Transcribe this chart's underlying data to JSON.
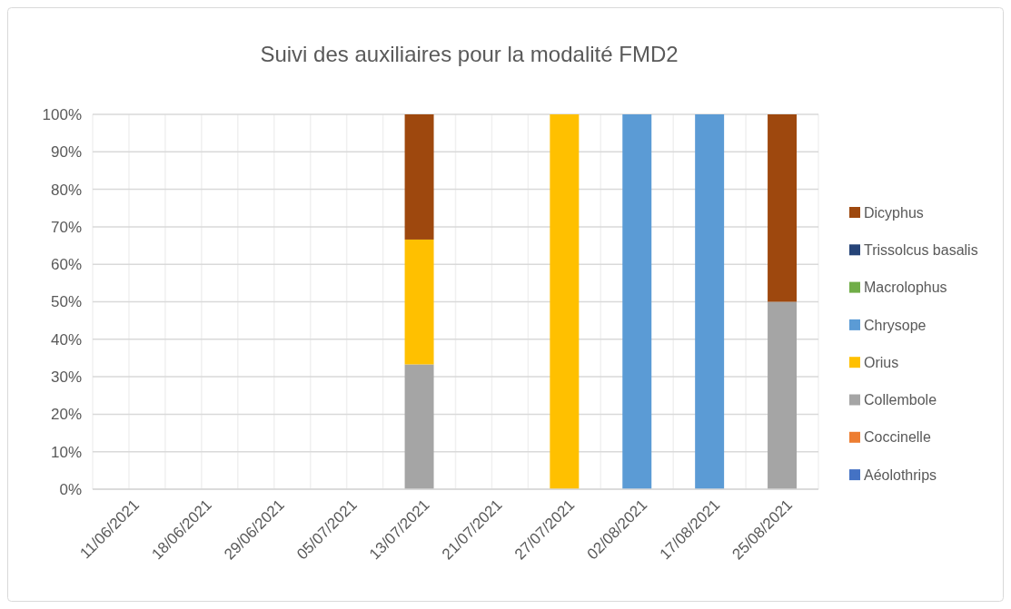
{
  "chart_data": {
    "type": "bar",
    "stacked": true,
    "title": "Suivi des auxiliaires pour la modalité FMD2",
    "categories": [
      "11/06/2021",
      "18/06/2021",
      "29/06/2021",
      "05/07/2021",
      "13/07/2021",
      "21/07/2021",
      "27/07/2021",
      "02/08/2021",
      "17/08/2021",
      "25/08/2021"
    ],
    "series": [
      {
        "name": "Aéolothrips",
        "color": "#4472c4",
        "values": [
          null,
          null,
          null,
          null,
          null,
          null,
          null,
          null,
          null,
          null
        ]
      },
      {
        "name": "Coccinelle",
        "color": "#ed7d31",
        "values": [
          null,
          null,
          null,
          null,
          null,
          null,
          null,
          null,
          null,
          null
        ]
      },
      {
        "name": "Collembole",
        "color": "#a5a5a5",
        "values": [
          null,
          null,
          null,
          null,
          33.3,
          null,
          null,
          null,
          null,
          50
        ]
      },
      {
        "name": "Orius",
        "color": "#ffc000",
        "values": [
          null,
          null,
          null,
          null,
          33.3,
          null,
          100,
          null,
          null,
          null
        ]
      },
      {
        "name": "Chrysope",
        "color": "#5b9bd5",
        "values": [
          null,
          null,
          null,
          null,
          null,
          null,
          null,
          100,
          100,
          null
        ]
      },
      {
        "name": "Macrolophus",
        "color": "#70ad47",
        "values": [
          null,
          null,
          null,
          null,
          null,
          null,
          null,
          null,
          null,
          null
        ]
      },
      {
        "name": "Trissolcus basalis",
        "color": "#264478",
        "values": [
          null,
          null,
          null,
          null,
          null,
          null,
          null,
          null,
          null,
          null
        ]
      },
      {
        "name": "Dicyphus",
        "color": "#9e480e",
        "values": [
          null,
          null,
          null,
          null,
          33.4,
          null,
          null,
          null,
          null,
          50
        ]
      }
    ],
    "ylim": [
      0,
      100
    ],
    "yticks": [
      {
        "value": 0,
        "label": "0%"
      },
      {
        "value": 10,
        "label": "10%"
      },
      {
        "value": 20,
        "label": "20%"
      },
      {
        "value": 30,
        "label": "30%"
      },
      {
        "value": 40,
        "label": "40%"
      },
      {
        "value": 50,
        "label": "50%"
      },
      {
        "value": 60,
        "label": "60%"
      },
      {
        "value": 70,
        "label": "70%"
      },
      {
        "value": 80,
        "label": "80%"
      },
      {
        "value": 90,
        "label": "90%"
      },
      {
        "value": 100,
        "label": "100%"
      }
    ],
    "grid": true,
    "legend": "right"
  }
}
